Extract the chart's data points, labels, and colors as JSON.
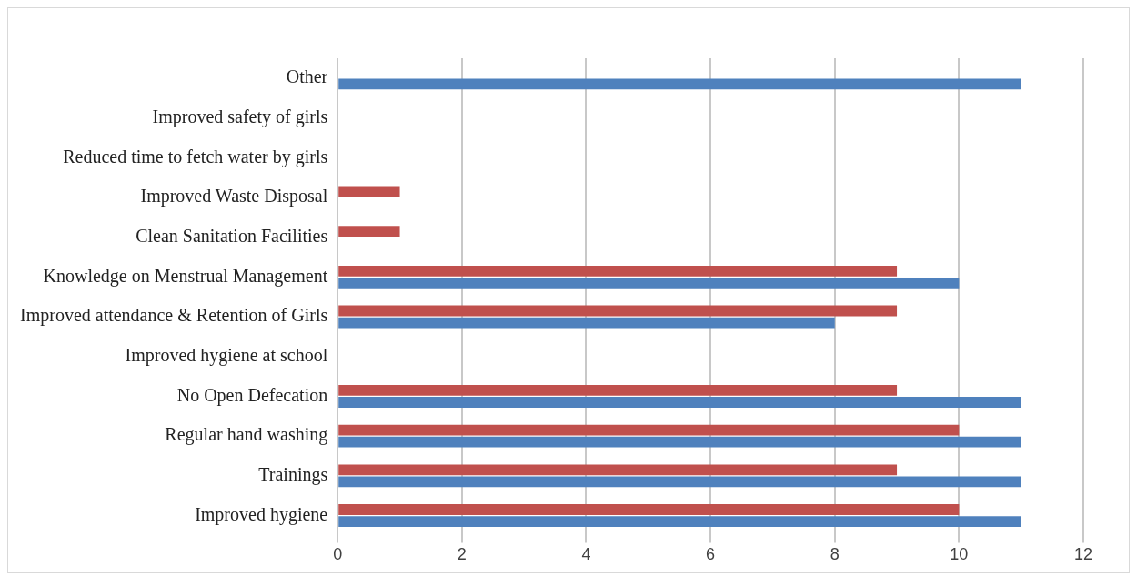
{
  "chart_data": {
    "type": "bar",
    "orientation": "horizontal",
    "categories": [
      "Other",
      "Improved safety of girls",
      "Reduced time to fetch water by girls",
      "Improved Waste Disposal",
      "Clean Sanitation Facilities",
      "Knowledge on Menstrual Management",
      "Improved attendance & Retention of Girls",
      "Improved hygiene at school",
      "No Open Defecation",
      "Regular hand washing",
      "Trainings",
      "Improved hygiene"
    ],
    "series": [
      {
        "color": "#c0504d",
        "values": [
          0,
          0,
          0,
          1,
          1,
          9,
          9,
          0,
          9,
          10,
          9,
          10
        ]
      },
      {
        "color": "#4f81bd",
        "values": [
          11,
          0,
          0,
          0,
          0,
          10,
          8,
          0,
          11,
          11,
          11,
          11
        ]
      }
    ],
    "xlim": [
      0,
      12
    ],
    "xticks": [
      0,
      2,
      4,
      6,
      8,
      10,
      12
    ],
    "grid": "x",
    "legend": false
  }
}
